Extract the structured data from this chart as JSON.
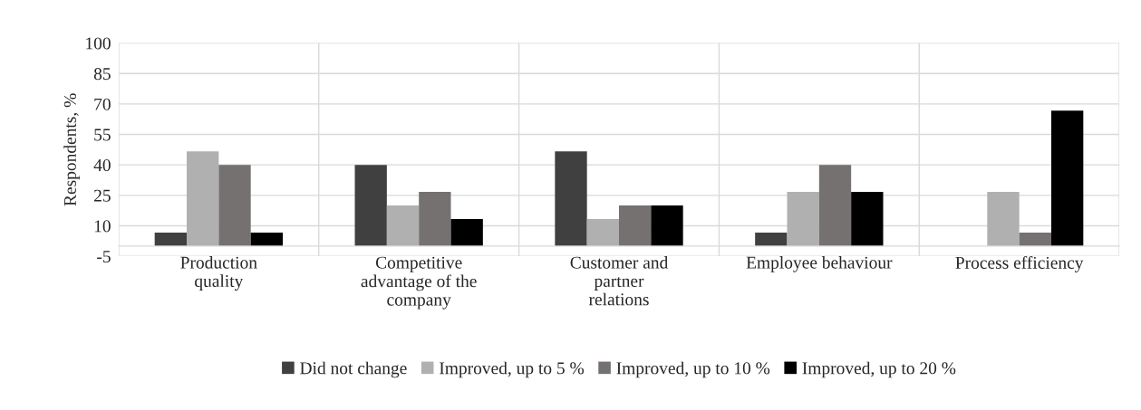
{
  "chart_data": {
    "type": "bar",
    "ylabel": "Respondents, %",
    "categories": [
      "Production\nquality",
      "Competitive\nadvantage of the\ncompany",
      "Customer and\npartner\nrelations",
      "Employee behaviour",
      "Process efficiency"
    ],
    "series": [
      {
        "name": "Did not change",
        "color": "#404040",
        "values": [
          6.7,
          40,
          46.7,
          6.7,
          0
        ]
      },
      {
        "name": "Improved, up to 5 %",
        "color": "#b0b0b0",
        "values": [
          46.7,
          20,
          13.3,
          26.7,
          26.7
        ]
      },
      {
        "name": "Improved, up to 10 %",
        "color": "#767171",
        "values": [
          40,
          26.7,
          20,
          40,
          6.7
        ]
      },
      {
        "name": "Improved, up to 20 %",
        "color": "#000000",
        "values": [
          6.7,
          13.3,
          20,
          26.7,
          66.7
        ]
      }
    ],
    "ylim": [
      -5,
      100
    ],
    "yticks": [
      -5,
      10,
      25,
      40,
      55,
      70,
      85,
      100
    ],
    "grid": true,
    "legend": "bottom"
  }
}
